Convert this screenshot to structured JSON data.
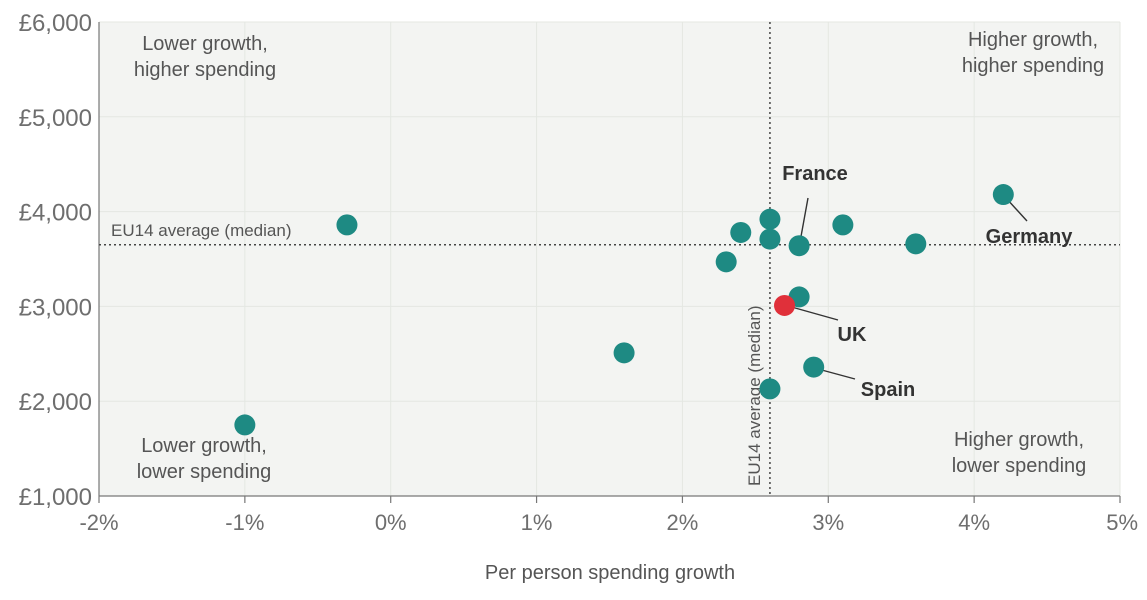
{
  "chart_data": {
    "type": "scatter",
    "title": "",
    "xlabel": "Per person spending growth",
    "ylabel": "",
    "xlim": [
      -2,
      5
    ],
    "ylim": [
      1000,
      6000
    ],
    "x_ticks": [
      -2,
      -1,
      0,
      1,
      2,
      3,
      4,
      5
    ],
    "y_ticks": [
      1000,
      2000,
      3000,
      4000,
      5000,
      6000
    ],
    "x_tick_labels": [
      "-2%",
      "-1%",
      "0%",
      "1%",
      "2%",
      "3%",
      "4%",
      "5%"
    ],
    "y_tick_labels": [
      "£1,000",
      "£2,000",
      "£3,000",
      "£4,000",
      "£5,000",
      "£6,000"
    ],
    "grid": true,
    "colors": {
      "point": "#1e8a83",
      "highlight": "#e0303a",
      "plot_bg": "#f3f4f2",
      "gridline": "#e4e7e2",
      "reference": "#444444"
    },
    "points": [
      {
        "x": -1.0,
        "y": 1750,
        "label": ""
      },
      {
        "x": -0.3,
        "y": 3860,
        "label": ""
      },
      {
        "x": 1.6,
        "y": 2510,
        "label": ""
      },
      {
        "x": 2.3,
        "y": 3470,
        "label": ""
      },
      {
        "x": 2.4,
        "y": 3780,
        "label": ""
      },
      {
        "x": 2.6,
        "y": 3920,
        "label": ""
      },
      {
        "x": 2.6,
        "y": 3710,
        "label": ""
      },
      {
        "x": 2.6,
        "y": 2130,
        "label": ""
      },
      {
        "x": 2.8,
        "y": 3640,
        "label": "France"
      },
      {
        "x": 2.8,
        "y": 3100,
        "label": ""
      },
      {
        "x": 2.9,
        "y": 2360,
        "label": "Spain"
      },
      {
        "x": 3.1,
        "y": 3860,
        "label": ""
      },
      {
        "x": 3.6,
        "y": 3660,
        "label": ""
      },
      {
        "x": 4.2,
        "y": 4180,
        "label": "Germany"
      },
      {
        "x": 2.7,
        "y": 3010,
        "label": "UK",
        "highlight": true
      }
    ],
    "reference_lines": {
      "horizontal": {
        "y": 3650,
        "label": "EU14 average (median)"
      },
      "vertical": {
        "x": 2.6,
        "label": "EU14 average (median)"
      }
    },
    "quadrant_labels": {
      "top_left": [
        "Lower growth,",
        "higher spending"
      ],
      "top_right": [
        "Higher growth,",
        "higher spending"
      ],
      "bottom_left": [
        "Lower growth,",
        "lower spending"
      ],
      "bottom_right": [
        "Higher growth,",
        "lower spending"
      ]
    }
  }
}
